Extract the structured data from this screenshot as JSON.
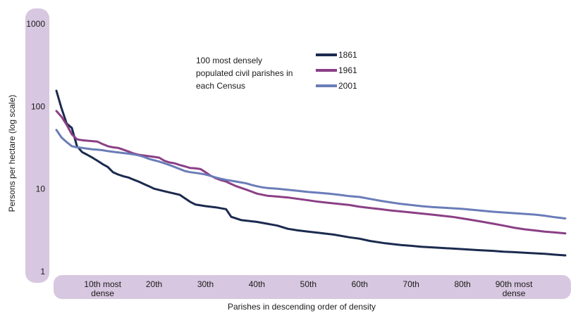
{
  "chart_data": {
    "type": "line",
    "title": "",
    "annotation": [
      "100 most densely",
      "populated civil parishes in",
      "each Census"
    ],
    "xlabel": "Parishes in descending order of density",
    "ylabel": "Persons per hectare (log scale)",
    "yscale": "log",
    "ylim": [
      1,
      1000
    ],
    "y_ticks": [
      {
        "value": 1,
        "label": "1"
      },
      {
        "value": 10,
        "label": "10"
      },
      {
        "value": 100,
        "label": "100"
      },
      {
        "value": 1000,
        "label": "1000"
      }
    ],
    "x_ticks": [
      {
        "rank": 10,
        "label": [
          "10th most",
          "dense"
        ]
      },
      {
        "rank": 20,
        "label": [
          "20th"
        ]
      },
      {
        "rank": 30,
        "label": [
          "30th"
        ]
      },
      {
        "rank": 40,
        "label": [
          "40th"
        ]
      },
      {
        "rank": 50,
        "label": [
          "50th"
        ]
      },
      {
        "rank": 60,
        "label": [
          "60th"
        ]
      },
      {
        "rank": 70,
        "label": [
          "70th"
        ]
      },
      {
        "rank": 80,
        "label": [
          "80th"
        ]
      },
      {
        "rank": 90,
        "label": [
          "90th most",
          "dense"
        ]
      }
    ],
    "xlim": [
      1,
      100
    ],
    "legend_position": "top-center",
    "series": [
      {
        "name": "1861",
        "color": "#1b2a4e",
        "points": [
          [
            1,
            155
          ],
          [
            2,
            95
          ],
          [
            3,
            62
          ],
          [
            4,
            55
          ],
          [
            5,
            33
          ],
          [
            6,
            28
          ],
          [
            7,
            26
          ],
          [
            8,
            24
          ],
          [
            9,
            22
          ],
          [
            10,
            20
          ],
          [
            11,
            18.5
          ],
          [
            12,
            16
          ],
          [
            13,
            15
          ],
          [
            14,
            14.3
          ],
          [
            15,
            13.8
          ],
          [
            16,
            13
          ],
          [
            17,
            12.3
          ],
          [
            18,
            11.5
          ],
          [
            19,
            10.8
          ],
          [
            20,
            10.1
          ],
          [
            22,
            9.4
          ],
          [
            25,
            8.5
          ],
          [
            27,
            7
          ],
          [
            28,
            6.5
          ],
          [
            30,
            6.2
          ],
          [
            32,
            6
          ],
          [
            34,
            5.7
          ],
          [
            35,
            4.6
          ],
          [
            37,
            4.2
          ],
          [
            40,
            4
          ],
          [
            42,
            3.8
          ],
          [
            44,
            3.6
          ],
          [
            46,
            3.3
          ],
          [
            48,
            3.15
          ],
          [
            50,
            3.05
          ],
          [
            52,
            2.95
          ],
          [
            55,
            2.8
          ],
          [
            58,
            2.6
          ],
          [
            60,
            2.5
          ],
          [
            62,
            2.35
          ],
          [
            65,
            2.2
          ],
          [
            68,
            2.1
          ],
          [
            70,
            2.05
          ],
          [
            72,
            2
          ],
          [
            75,
            1.95
          ],
          [
            78,
            1.9
          ],
          [
            80,
            1.87
          ],
          [
            83,
            1.82
          ],
          [
            86,
            1.78
          ],
          [
            88,
            1.74
          ],
          [
            90,
            1.72
          ],
          [
            93,
            1.68
          ],
          [
            96,
            1.64
          ],
          [
            98,
            1.6
          ],
          [
            100,
            1.57
          ]
        ]
      },
      {
        "name": "1961",
        "color": "#8b3f86",
        "points": [
          [
            1,
            88
          ],
          [
            2,
            75
          ],
          [
            3,
            60
          ],
          [
            4,
            46
          ],
          [
            5,
            40
          ],
          [
            6,
            39
          ],
          [
            7,
            38.5
          ],
          [
            8,
            38
          ],
          [
            9,
            37.5
          ],
          [
            10,
            35
          ],
          [
            11,
            33
          ],
          [
            12,
            32
          ],
          [
            13,
            31.5
          ],
          [
            14,
            30
          ],
          [
            15,
            28.5
          ],
          [
            16,
            27
          ],
          [
            17,
            26
          ],
          [
            18,
            25.5
          ],
          [
            19,
            25
          ],
          [
            20,
            24.5
          ],
          [
            21,
            24
          ],
          [
            22,
            22
          ],
          [
            23,
            21
          ],
          [
            24,
            20.5
          ],
          [
            25,
            19.5
          ],
          [
            26,
            18.8
          ],
          [
            27,
            18
          ],
          [
            28,
            17.8
          ],
          [
            29,
            17.5
          ],
          [
            30,
            16
          ],
          [
            31,
            14.5
          ],
          [
            32,
            13.5
          ],
          [
            33,
            12.8
          ],
          [
            34,
            12.3
          ],
          [
            35,
            11.5
          ],
          [
            36,
            10.8
          ],
          [
            37,
            10.3
          ],
          [
            38,
            9.8
          ],
          [
            39,
            9.3
          ],
          [
            40,
            8.8
          ],
          [
            42,
            8.3
          ],
          [
            44,
            8.1
          ],
          [
            46,
            7.9
          ],
          [
            48,
            7.6
          ],
          [
            50,
            7.3
          ],
          [
            52,
            7
          ],
          [
            55,
            6.7
          ],
          [
            58,
            6.4
          ],
          [
            60,
            6.1
          ],
          [
            62,
            5.9
          ],
          [
            64,
            5.7
          ],
          [
            66,
            5.5
          ],
          [
            68,
            5.35
          ],
          [
            70,
            5.2
          ],
          [
            72,
            5.05
          ],
          [
            74,
            4.9
          ],
          [
            76,
            4.75
          ],
          [
            78,
            4.6
          ],
          [
            80,
            4.4
          ],
          [
            82,
            4.2
          ],
          [
            84,
            4
          ],
          [
            86,
            3.8
          ],
          [
            88,
            3.6
          ],
          [
            90,
            3.4
          ],
          [
            92,
            3.25
          ],
          [
            94,
            3.15
          ],
          [
            96,
            3.05
          ],
          [
            98,
            2.98
          ],
          [
            100,
            2.9
          ]
        ]
      },
      {
        "name": "2001",
        "color": "#6a7cb8",
        "points": [
          [
            1,
            52
          ],
          [
            2,
            42
          ],
          [
            3,
            37
          ],
          [
            4,
            33
          ],
          [
            5,
            32
          ],
          [
            6,
            31.5
          ],
          [
            7,
            30.8
          ],
          [
            8,
            30.3
          ],
          [
            9,
            30
          ],
          [
            10,
            29.5
          ],
          [
            11,
            28.8
          ],
          [
            12,
            28.3
          ],
          [
            13,
            27.8
          ],
          [
            14,
            27.3
          ],
          [
            15,
            26.8
          ],
          [
            16,
            26.3
          ],
          [
            17,
            25.6
          ],
          [
            18,
            24.5
          ],
          [
            19,
            23.2
          ],
          [
            20,
            22.3
          ],
          [
            21,
            21.5
          ],
          [
            22,
            20.5
          ],
          [
            23,
            19.5
          ],
          [
            24,
            18.5
          ],
          [
            25,
            17.5
          ],
          [
            26,
            16.5
          ],
          [
            27,
            16
          ],
          [
            28,
            15.7
          ],
          [
            29,
            15.4
          ],
          [
            30,
            15
          ],
          [
            31,
            14.4
          ],
          [
            32,
            13.8
          ],
          [
            33,
            13.3
          ],
          [
            34,
            12.9
          ],
          [
            35,
            12.6
          ],
          [
            36,
            12.3
          ],
          [
            37,
            12
          ],
          [
            38,
            11.7
          ],
          [
            39,
            11.2
          ],
          [
            40,
            10.8
          ],
          [
            41,
            10.5
          ],
          [
            42,
            10.3
          ],
          [
            44,
            10.1
          ],
          [
            46,
            9.8
          ],
          [
            48,
            9.5
          ],
          [
            50,
            9.2
          ],
          [
            52,
            9
          ],
          [
            54,
            8.8
          ],
          [
            56,
            8.5
          ],
          [
            58,
            8.2
          ],
          [
            60,
            8
          ],
          [
            62,
            7.6
          ],
          [
            64,
            7.2
          ],
          [
            66,
            6.9
          ],
          [
            68,
            6.6
          ],
          [
            70,
            6.4
          ],
          [
            72,
            6.2
          ],
          [
            74,
            6.05
          ],
          [
            76,
            5.95
          ],
          [
            78,
            5.85
          ],
          [
            80,
            5.75
          ],
          [
            82,
            5.6
          ],
          [
            84,
            5.45
          ],
          [
            86,
            5.3
          ],
          [
            88,
            5.2
          ],
          [
            90,
            5.1
          ],
          [
            92,
            5
          ],
          [
            94,
            4.9
          ],
          [
            96,
            4.75
          ],
          [
            98,
            4.55
          ],
          [
            100,
            4.4
          ]
        ]
      }
    ]
  },
  "colors": {
    "axis_band": "#d8c7e0",
    "background": "#ffffff"
  }
}
